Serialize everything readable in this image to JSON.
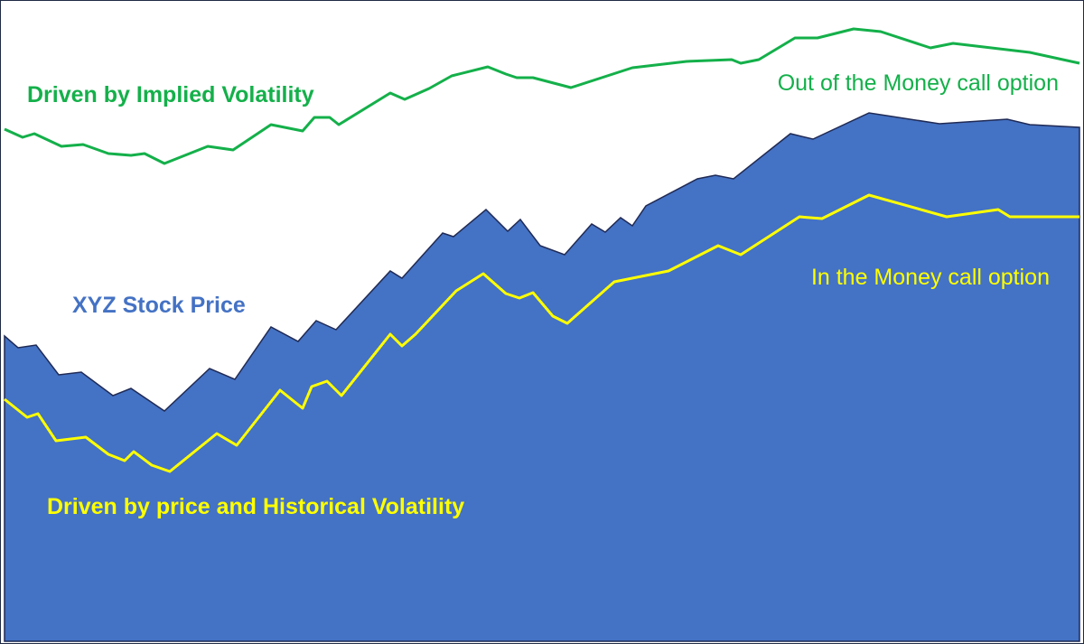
{
  "labels": {
    "implied": "Driven by Implied Volatility",
    "otm": "Out of the Money call option",
    "stock": "XYZ Stock Price",
    "itm": "In the Money call option",
    "historical": "Driven by price and Historical Volatility"
  }
}
